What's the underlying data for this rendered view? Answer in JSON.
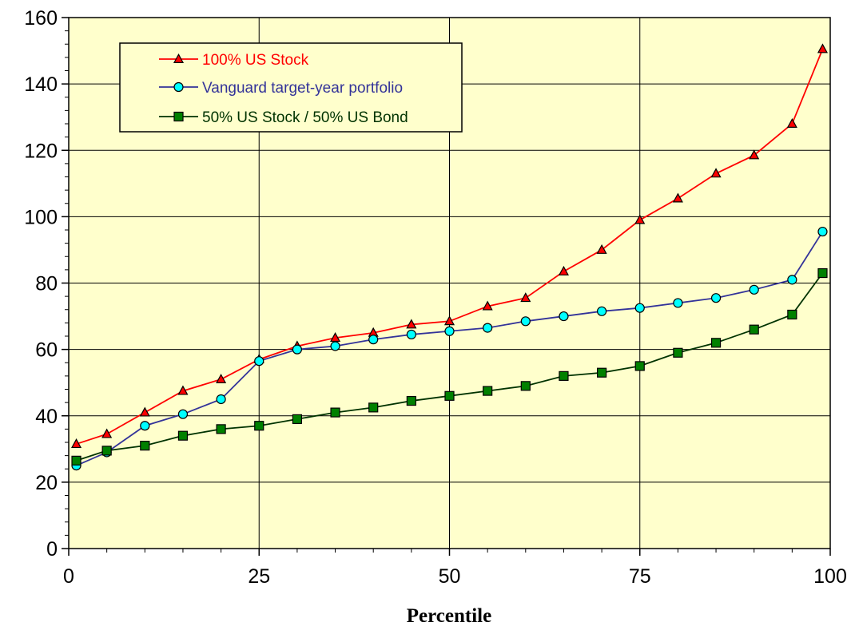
{
  "colors": {
    "plot_background": "#ffffcc",
    "legend_background": "#ffffcc",
    "gridline": "#000000",
    "axis": "#000000"
  },
  "chart_data": {
    "type": "line",
    "title": "",
    "xlabel": "Percentile",
    "ylabel": "",
    "xlim": [
      0,
      100
    ],
    "ylim": [
      0,
      160
    ],
    "xticks": [
      0,
      25,
      50,
      75,
      100
    ],
    "yticks": [
      0,
      20,
      40,
      60,
      80,
      100,
      120,
      140,
      160
    ],
    "x_minor_step": 5,
    "y_minor_step": 4,
    "grid": true,
    "legend_position": "top-left",
    "series": [
      {
        "name": "100% US Stock",
        "color": "#ff0000",
        "marker": "triangle",
        "marker_fill": "#ff0000",
        "x": [
          1,
          5,
          10,
          15,
          20,
          25,
          30,
          35,
          40,
          45,
          50,
          55,
          60,
          65,
          70,
          75,
          80,
          85,
          90,
          95,
          99
        ],
        "values": [
          31.5,
          34.5,
          41,
          47.5,
          51,
          57,
          61,
          63.5,
          65,
          67.5,
          68.5,
          73,
          75.5,
          83.5,
          90,
          99,
          105.5,
          113,
          118.5,
          128,
          150.5
        ]
      },
      {
        "name": "Vanguard target-year portfolio",
        "color": "#333399",
        "marker": "circle",
        "marker_fill": "#00ffff",
        "x": [
          1,
          5,
          10,
          15,
          20,
          25,
          30,
          35,
          40,
          45,
          50,
          55,
          60,
          65,
          70,
          75,
          80,
          85,
          90,
          95,
          99
        ],
        "values": [
          25,
          29,
          37,
          40.5,
          45,
          56.5,
          60,
          61,
          63,
          64.5,
          65.5,
          66.5,
          68.5,
          70,
          71.5,
          72.5,
          74,
          75.5,
          78,
          81,
          95.5
        ]
      },
      {
        "name": "50% US Stock / 50% US Bond",
        "color": "#003300",
        "marker": "square",
        "marker_fill": "#008000",
        "x": [
          1,
          5,
          10,
          15,
          20,
          25,
          30,
          35,
          40,
          45,
          50,
          55,
          60,
          65,
          70,
          75,
          80,
          85,
          90,
          95,
          99
        ],
        "values": [
          26.5,
          29.5,
          31,
          34,
          36,
          37,
          39,
          41,
          42.5,
          44.5,
          46,
          47.5,
          49,
          52,
          53,
          55,
          59,
          62,
          66,
          70.5,
          83
        ]
      }
    ]
  }
}
